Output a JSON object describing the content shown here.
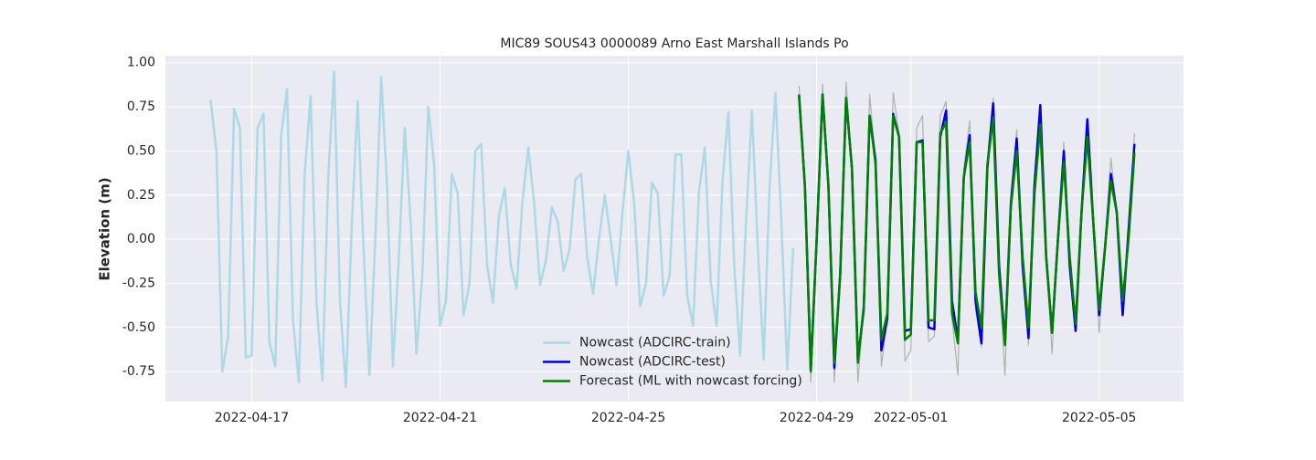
{
  "chart_data": {
    "type": "line",
    "title": "MIC89 SOUS43 0000089 Arno East Marshall Islands Po",
    "y_label": "Elevation (m)",
    "grid": true,
    "legend": "lower center",
    "xlim": [
      "2022-04-15 04:00",
      "2022-05-06 19:00"
    ],
    "xticks": [
      "2022-04-17",
      "2022-04-21",
      "2022-04-25",
      "2022-04-29",
      "2022-05-01",
      "2022-05-05"
    ],
    "ylim": [
      -0.92,
      1.04
    ],
    "yticks": [
      {
        "value": -0.75,
        "label": "-0.75"
      },
      {
        "value": -0.5,
        "label": "-0.50"
      },
      {
        "value": -0.25,
        "label": "-0.25"
      },
      {
        "value": 0,
        "label": "0.00"
      },
      {
        "value": 0.25,
        "label": "0.25"
      },
      {
        "value": 0.5,
        "label": "0.50"
      },
      {
        "value": 0.75,
        "label": "0.75"
      },
      {
        "value": 1,
        "label": "1.00"
      }
    ],
    "x": [
      "2022-04-16 03:00",
      "2022-04-16 06:00",
      "2022-04-16 09:00",
      "2022-04-16 12:00",
      "2022-04-16 15:00",
      "2022-04-16 18:00",
      "2022-04-16 21:00",
      "2022-04-17 00:00",
      "2022-04-17 03:00",
      "2022-04-17 06:00",
      "2022-04-17 09:00",
      "2022-04-17 12:00",
      "2022-04-17 15:00",
      "2022-04-17 18:00",
      "2022-04-17 21:00",
      "2022-04-18 00:00",
      "2022-04-18 03:00",
      "2022-04-18 06:00",
      "2022-04-18 09:00",
      "2022-04-18 12:00",
      "2022-04-18 15:00",
      "2022-04-18 18:00",
      "2022-04-18 21:00",
      "2022-04-19 00:00",
      "2022-04-19 03:00",
      "2022-04-19 06:00",
      "2022-04-19 09:00",
      "2022-04-19 12:00",
      "2022-04-19 15:00",
      "2022-04-19 18:00",
      "2022-04-19 21:00",
      "2022-04-20 00:00",
      "2022-04-20 03:00",
      "2022-04-20 06:00",
      "2022-04-20 09:00",
      "2022-04-20 12:00",
      "2022-04-20 15:00",
      "2022-04-20 18:00",
      "2022-04-20 21:00",
      "2022-04-21 00:00",
      "2022-04-21 03:00",
      "2022-04-21 06:00",
      "2022-04-21 09:00",
      "2022-04-21 12:00",
      "2022-04-21 15:00",
      "2022-04-21 18:00",
      "2022-04-21 21:00",
      "2022-04-22 00:00",
      "2022-04-22 03:00",
      "2022-04-22 06:00",
      "2022-04-22 09:00",
      "2022-04-22 12:00",
      "2022-04-22 15:00",
      "2022-04-22 18:00",
      "2022-04-22 21:00",
      "2022-04-23 00:00",
      "2022-04-23 03:00",
      "2022-04-23 06:00",
      "2022-04-23 09:00",
      "2022-04-23 12:00",
      "2022-04-23 15:00",
      "2022-04-23 18:00",
      "2022-04-23 21:00",
      "2022-04-24 00:00",
      "2022-04-24 03:00",
      "2022-04-24 06:00",
      "2022-04-24 09:00",
      "2022-04-24 12:00",
      "2022-04-24 15:00",
      "2022-04-24 18:00",
      "2022-04-24 21:00",
      "2022-04-25 00:00",
      "2022-04-25 03:00",
      "2022-04-25 06:00",
      "2022-04-25 09:00",
      "2022-04-25 12:00",
      "2022-04-25 15:00",
      "2022-04-25 18:00",
      "2022-04-25 21:00",
      "2022-04-26 00:00",
      "2022-04-26 03:00",
      "2022-04-26 06:00",
      "2022-04-26 09:00",
      "2022-04-26 12:00",
      "2022-04-26 15:00",
      "2022-04-26 18:00",
      "2022-04-26 21:00",
      "2022-04-27 00:00",
      "2022-04-27 03:00",
      "2022-04-27 06:00",
      "2022-04-27 09:00",
      "2022-04-27 12:00",
      "2022-04-27 15:00",
      "2022-04-27 18:00",
      "2022-04-27 21:00",
      "2022-04-28 00:00",
      "2022-04-28 03:00",
      "2022-04-28 06:00",
      "2022-04-28 09:00",
      "2022-04-28 12:00",
      "2022-04-28 15:00",
      "2022-04-28 18:00",
      "2022-04-28 21:00",
      "2022-04-29 00:00",
      "2022-04-29 03:00",
      "2022-04-29 06:00",
      "2022-04-29 09:00",
      "2022-04-29 12:00",
      "2022-04-29 15:00",
      "2022-04-29 18:00",
      "2022-04-29 21:00",
      "2022-04-30 00:00",
      "2022-04-30 03:00",
      "2022-04-30 06:00",
      "2022-04-30 09:00",
      "2022-04-30 12:00",
      "2022-04-30 15:00",
      "2022-04-30 18:00",
      "2022-04-30 21:00",
      "2022-05-01 00:00",
      "2022-05-01 03:00",
      "2022-05-01 06:00",
      "2022-05-01 09:00",
      "2022-05-01 12:00",
      "2022-05-01 15:00",
      "2022-05-01 18:00",
      "2022-05-01 21:00",
      "2022-05-02 00:00",
      "2022-05-02 03:00",
      "2022-05-02 06:00",
      "2022-05-02 09:00",
      "2022-05-02 12:00",
      "2022-05-02 15:00",
      "2022-05-02 18:00",
      "2022-05-02 21:00",
      "2022-05-03 00:00",
      "2022-05-03 03:00",
      "2022-05-03 06:00",
      "2022-05-03 09:00",
      "2022-05-03 12:00",
      "2022-05-03 15:00",
      "2022-05-03 18:00",
      "2022-05-03 21:00",
      "2022-05-04 00:00",
      "2022-05-04 03:00",
      "2022-05-04 06:00",
      "2022-05-04 09:00",
      "2022-05-04 12:00",
      "2022-05-04 15:00",
      "2022-05-04 18:00",
      "2022-05-04 21:00",
      "2022-05-05 00:00",
      "2022-05-05 03:00",
      "2022-05-05 06:00",
      "2022-05-05 09:00",
      "2022-05-05 12:00",
      "2022-05-05 15:00",
      "2022-05-05 18:00"
    ],
    "series": [
      {
        "color": "#b0b0b0",
        "values": [
          null,
          null,
          null,
          null,
          null,
          null,
          null,
          null,
          null,
          null,
          null,
          null,
          null,
          null,
          null,
          null,
          null,
          null,
          null,
          null,
          null,
          null,
          null,
          null,
          null,
          null,
          null,
          null,
          null,
          null,
          null,
          null,
          null,
          null,
          null,
          null,
          null,
          null,
          null,
          null,
          null,
          null,
          null,
          null,
          null,
          null,
          null,
          null,
          null,
          null,
          null,
          null,
          null,
          null,
          null,
          null,
          null,
          null,
          null,
          null,
          null,
          null,
          null,
          null,
          null,
          null,
          null,
          null,
          null,
          null,
          null,
          null,
          null,
          null,
          null,
          null,
          null,
          null,
          null,
          null,
          null,
          null,
          null,
          null,
          null,
          null,
          null,
          null,
          null,
          null,
          null,
          null,
          null,
          null,
          null,
          null,
          null,
          null,
          null,
          null,
          0.87,
          0.3,
          -0.81,
          0.0,
          0.88,
          0.3,
          -0.81,
          -0.2,
          0.89,
          0.4,
          -0.81,
          -0.4,
          0.82,
          0.45,
          -0.72,
          -0.45,
          0.83,
          0.6,
          -0.69,
          -0.63,
          0.63,
          0.7,
          -0.58,
          -0.55,
          0.7,
          0.78,
          -0.45,
          -0.77,
          0.4,
          0.67,
          -0.4,
          -0.61,
          0.45,
          0.8,
          -0.2,
          -0.77,
          0.25,
          0.62,
          -0.15,
          -0.6,
          0.35,
          0.75,
          -0.1,
          -0.65,
          0.0,
          0.55,
          -0.15,
          -0.52,
          0.15,
          0.63,
          0.1,
          -0.53,
          -0.05,
          0.46,
          0.15,
          -0.3,
          0.0,
          0.6
        ]
      },
      {
        "name": "Nowcast (ADCIRC-train)",
        "color": "#add8e6",
        "values": [
          0.79,
          0.5,
          -0.75,
          -0.55,
          0.74,
          0.63,
          -0.67,
          -0.66,
          0.63,
          0.71,
          -0.58,
          -0.72,
          0.59,
          0.85,
          -0.45,
          -0.81,
          0.37,
          0.81,
          -0.35,
          -0.8,
          0.35,
          0.95,
          -0.35,
          -0.84,
          0.08,
          0.78,
          -0.05,
          -0.77,
          0.0,
          0.92,
          0.3,
          -0.72,
          -0.1,
          0.63,
          0.1,
          -0.65,
          -0.2,
          0.75,
          0.42,
          -0.49,
          -0.35,
          0.37,
          0.26,
          -0.43,
          -0.25,
          0.5,
          0.54,
          -0.15,
          -0.36,
          0.13,
          0.29,
          -0.14,
          -0.28,
          0.21,
          0.52,
          0.2,
          -0.26,
          -0.12,
          0.18,
          0.1,
          -0.18,
          -0.06,
          0.34,
          0.37,
          -0.1,
          -0.31,
          0.0,
          0.25,
          0.0,
          -0.26,
          0.15,
          0.5,
          0.2,
          -0.38,
          -0.25,
          0.32,
          0.26,
          -0.32,
          -0.21,
          0.48,
          0.48,
          -0.32,
          -0.49,
          0.27,
          0.52,
          -0.24,
          -0.49,
          0.33,
          0.72,
          -0.15,
          -0.66,
          0.1,
          0.73,
          -0.05,
          -0.68,
          0.3,
          0.83,
          0.1,
          -0.74,
          -0.05,
          null,
          null,
          null,
          null,
          null,
          null,
          null,
          null,
          null,
          null,
          null,
          null,
          null,
          null,
          null,
          null,
          null,
          null,
          null,
          null,
          null,
          null,
          null,
          null,
          null,
          null,
          null,
          null,
          null,
          null,
          null,
          null,
          null,
          null,
          null,
          null,
          null,
          null,
          null,
          null,
          null,
          null,
          null,
          null,
          null,
          null,
          null,
          null,
          null,
          null,
          null,
          null,
          null,
          null,
          null,
          null,
          null,
          null
        ]
      },
      {
        "name": "Nowcast (ADCIRC-test)",
        "color": "#0000dd",
        "values": [
          null,
          null,
          null,
          null,
          null,
          null,
          null,
          null,
          null,
          null,
          null,
          null,
          null,
          null,
          null,
          null,
          null,
          null,
          null,
          null,
          null,
          null,
          null,
          null,
          null,
          null,
          null,
          null,
          null,
          null,
          null,
          null,
          null,
          null,
          null,
          null,
          null,
          null,
          null,
          null,
          null,
          null,
          null,
          null,
          null,
          null,
          null,
          null,
          null,
          null,
          null,
          null,
          null,
          null,
          null,
          null,
          null,
          null,
          null,
          null,
          null,
          null,
          null,
          null,
          null,
          null,
          null,
          null,
          null,
          null,
          null,
          null,
          null,
          null,
          null,
          null,
          null,
          null,
          null,
          null,
          null,
          null,
          null,
          null,
          null,
          null,
          null,
          null,
          null,
          null,
          null,
          null,
          null,
          null,
          null,
          null,
          null,
          null,
          null,
          null,
          0.82,
          0.3,
          -0.74,
          0.0,
          0.82,
          0.3,
          -0.73,
          -0.2,
          0.8,
          0.4,
          -0.68,
          -0.4,
          0.7,
          0.45,
          -0.63,
          -0.45,
          0.71,
          0.58,
          -0.52,
          -0.51,
          0.55,
          0.56,
          -0.5,
          -0.51,
          0.58,
          0.73,
          -0.35,
          -0.57,
          0.35,
          0.59,
          -0.35,
          -0.59,
          0.4,
          0.77,
          -0.15,
          -0.58,
          0.2,
          0.57,
          -0.15,
          -0.56,
          0.3,
          0.76,
          -0.1,
          -0.53,
          0.0,
          0.5,
          -0.15,
          -0.52,
          0.15,
          0.68,
          0.1,
          -0.43,
          -0.05,
          0.37,
          0.15,
          -0.43,
          0.05,
          0.54
        ]
      },
      {
        "name": "Forecast (ML with nowcast forcing)",
        "color": "#008000",
        "values": [
          null,
          null,
          null,
          null,
          null,
          null,
          null,
          null,
          null,
          null,
          null,
          null,
          null,
          null,
          null,
          null,
          null,
          null,
          null,
          null,
          null,
          null,
          null,
          null,
          null,
          null,
          null,
          null,
          null,
          null,
          null,
          null,
          null,
          null,
          null,
          null,
          null,
          null,
          null,
          null,
          null,
          null,
          null,
          null,
          null,
          null,
          null,
          null,
          null,
          null,
          null,
          null,
          null,
          null,
          null,
          null,
          null,
          null,
          null,
          null,
          null,
          null,
          null,
          null,
          null,
          null,
          null,
          null,
          null,
          null,
          null,
          null,
          null,
          null,
          null,
          null,
          null,
          null,
          null,
          null,
          null,
          null,
          null,
          null,
          null,
          null,
          null,
          null,
          null,
          null,
          null,
          null,
          null,
          null,
          null,
          null,
          null,
          null,
          null,
          null,
          0.82,
          0.3,
          -0.75,
          0.0,
          0.82,
          0.3,
          -0.7,
          -0.2,
          0.8,
          0.4,
          -0.7,
          -0.38,
          0.7,
          0.43,
          -0.57,
          -0.42,
          0.7,
          0.58,
          -0.57,
          -0.54,
          0.55,
          0.55,
          -0.46,
          -0.46,
          0.6,
          0.66,
          -0.42,
          -0.59,
          0.35,
          0.55,
          -0.3,
          -0.5,
          0.42,
          0.69,
          -0.2,
          -0.6,
          0.18,
          0.5,
          -0.1,
          -0.5,
          0.25,
          0.65,
          -0.1,
          -0.53,
          0.0,
          0.44,
          -0.1,
          -0.48,
          0.15,
          0.58,
          0.1,
          -0.4,
          -0.05,
          0.33,
          0.15,
          -0.35,
          0.0,
          0.49
        ]
      }
    ]
  }
}
